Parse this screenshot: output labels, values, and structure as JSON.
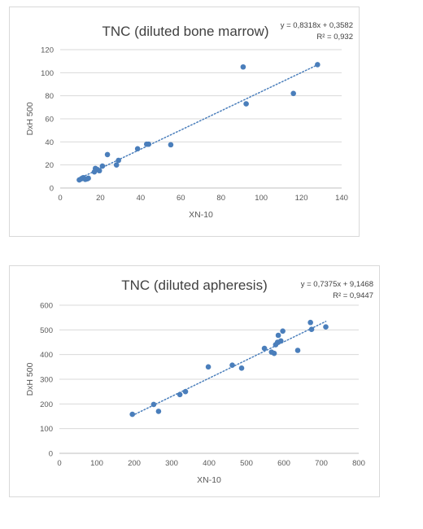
{
  "chart_data": [
    {
      "type": "scatter",
      "title": "TNC (diluted bone marrow)",
      "xlabel": "XN-10",
      "ylabel": "DxH 500",
      "xlim": [
        0,
        140
      ],
      "ylim": [
        0,
        120
      ],
      "xticks": [
        "0",
        "20",
        "40",
        "60",
        "80",
        "100",
        "120",
        "140"
      ],
      "yticks": [
        "0",
        "20",
        "40",
        "60",
        "80",
        "100",
        "120"
      ],
      "grid": true,
      "equation": "y = 0,8318x + 0,3582",
      "r_squared": "R² = 0,932",
      "trendline": {
        "slope": 0.8318,
        "intercept": 0.3582
      },
      "color": "#4a7ebb",
      "points": [
        {
          "x": 9.5,
          "y": 7
        },
        {
          "x": 10.5,
          "y": 8
        },
        {
          "x": 11,
          "y": 8.5
        },
        {
          "x": 11.5,
          "y": 9
        },
        {
          "x": 12.5,
          "y": 7.5
        },
        {
          "x": 13.5,
          "y": 8
        },
        {
          "x": 14,
          "y": 8.5
        },
        {
          "x": 17,
          "y": 14
        },
        {
          "x": 17.5,
          "y": 17
        },
        {
          "x": 18.5,
          "y": 16
        },
        {
          "x": 19.5,
          "y": 15
        },
        {
          "x": 21,
          "y": 19
        },
        {
          "x": 23.5,
          "y": 29
        },
        {
          "x": 28,
          "y": 20
        },
        {
          "x": 29,
          "y": 24
        },
        {
          "x": 38.5,
          "y": 34
        },
        {
          "x": 43,
          "y": 38
        },
        {
          "x": 44,
          "y": 38
        },
        {
          "x": 55,
          "y": 37.5
        },
        {
          "x": 91,
          "y": 105
        },
        {
          "x": 92.5,
          "y": 73
        },
        {
          "x": 116,
          "y": 82
        },
        {
          "x": 128,
          "y": 107
        }
      ]
    },
    {
      "type": "scatter",
      "title": "TNC (diluted apheresis)",
      "xlabel": "XN-10",
      "ylabel": "DxH 500",
      "xlim": [
        0,
        800
      ],
      "ylim": [
        0,
        600
      ],
      "xticks": [
        "0",
        "100",
        "200",
        "300",
        "400",
        "500",
        "600",
        "700",
        "800"
      ],
      "yticks": [
        "0",
        "100",
        "200",
        "300",
        "400",
        "500",
        "600"
      ],
      "grid": true,
      "equation": "y = 0,7375x + 9,1468",
      "r_squared": "R² = 0,9447",
      "trendline": {
        "slope": 0.7375,
        "intercept": 9.1468
      },
      "color": "#4a7ebb",
      "points": [
        {
          "x": 195,
          "y": 158
        },
        {
          "x": 252,
          "y": 198
        },
        {
          "x": 265,
          "y": 170
        },
        {
          "x": 322,
          "y": 238
        },
        {
          "x": 337,
          "y": 250
        },
        {
          "x": 398,
          "y": 350
        },
        {
          "x": 462,
          "y": 357
        },
        {
          "x": 487,
          "y": 345
        },
        {
          "x": 548,
          "y": 425
        },
        {
          "x": 567,
          "y": 410
        },
        {
          "x": 574,
          "y": 405
        },
        {
          "x": 578,
          "y": 440
        },
        {
          "x": 583,
          "y": 450
        },
        {
          "x": 585,
          "y": 478
        },
        {
          "x": 592,
          "y": 455
        },
        {
          "x": 597,
          "y": 495
        },
        {
          "x": 637,
          "y": 417
        },
        {
          "x": 671,
          "y": 530
        },
        {
          "x": 674,
          "y": 502
        },
        {
          "x": 712,
          "y": 512
        }
      ]
    }
  ]
}
